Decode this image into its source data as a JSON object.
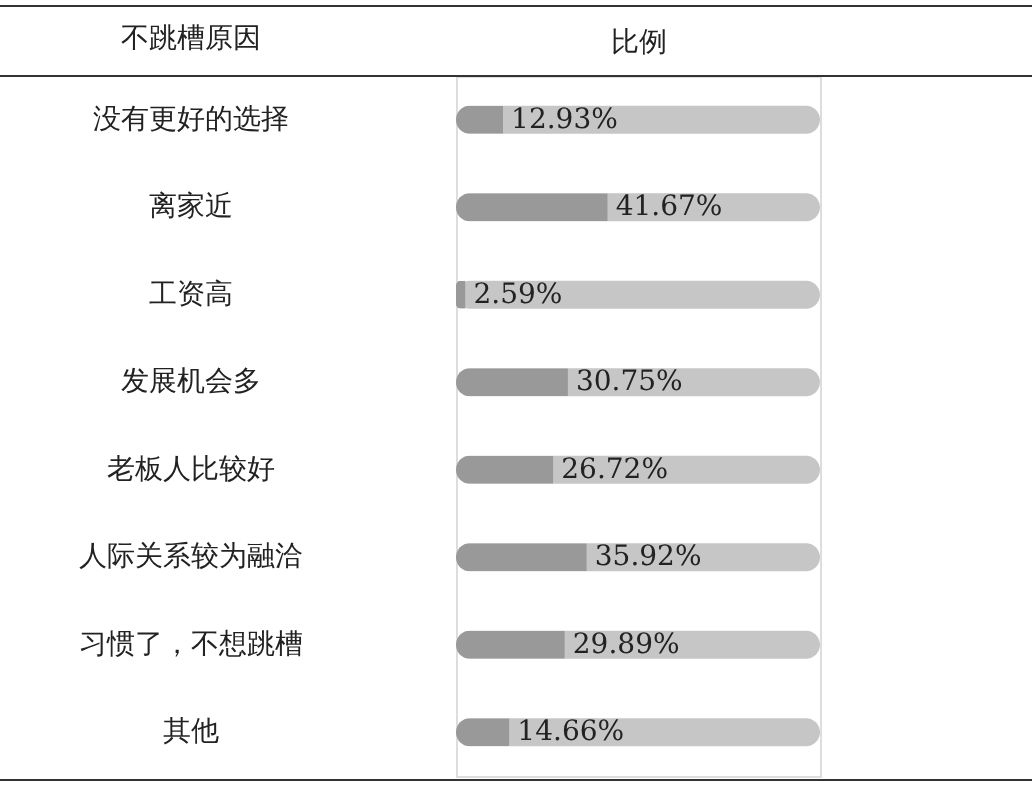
{
  "chart_data": {
    "type": "bar",
    "orientation": "horizontal",
    "ylabel": "不跳槽原因",
    "xlabel": "比例",
    "tick_labels": "y",
    "xlim": [
      0,
      100
    ],
    "categories": [
      "没有更好的选择",
      "离家近",
      "工资高",
      "发展机会多",
      "老板人比较好",
      "人际关系较为融洽",
      "习惯了，不想跳槽",
      "其他"
    ],
    "series": [
      {
        "color": "#999999",
        "values": [
          12.93,
          41.67,
          2.59,
          30.75,
          26.72,
          35.92,
          29.89,
          14.66
        ],
        "value_labels": [
          "12.93%",
          "41.67%",
          "2.59%",
          "30.75%",
          "26.72%",
          "35.92%",
          "29.89%",
          "14.66%"
        ]
      }
    ]
  }
}
